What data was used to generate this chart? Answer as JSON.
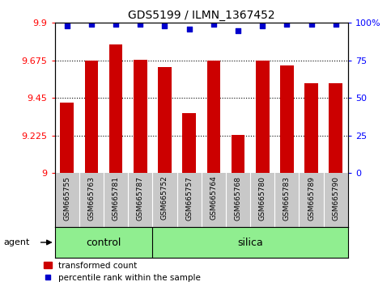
{
  "title": "GDS5199 / ILMN_1367452",
  "samples": [
    "GSM665755",
    "GSM665763",
    "GSM665781",
    "GSM665787",
    "GSM665752",
    "GSM665757",
    "GSM665764",
    "GSM665768",
    "GSM665780",
    "GSM665783",
    "GSM665789",
    "GSM665790"
  ],
  "bar_values": [
    9.42,
    9.675,
    9.77,
    9.68,
    9.635,
    9.36,
    9.675,
    9.23,
    9.675,
    9.645,
    9.54,
    9.54
  ],
  "percentile_values": [
    98,
    99,
    99,
    99,
    98,
    96,
    99,
    95,
    98,
    99,
    99,
    99
  ],
  "ylim_left": [
    9.0,
    9.9
  ],
  "yticks_left": [
    9.0,
    9.225,
    9.45,
    9.675,
    9.9
  ],
  "ytick_labels_left": [
    "9",
    "9.225",
    "9.45",
    "9.675",
    "9.9"
  ],
  "ylim_right": [
    0,
    100
  ],
  "yticks_right": [
    0,
    25,
    50,
    75,
    100
  ],
  "ytick_labels_right": [
    "0",
    "25",
    "50",
    "75",
    "100%"
  ],
  "bar_color": "#cc0000",
  "dot_color": "#0000cc",
  "bar_width": 0.55,
  "n_control": 4,
  "n_silica": 8,
  "group_label_control": "control",
  "group_label_silica": "silica",
  "agent_label": "agent",
  "legend_bar_label": "transformed count",
  "legend_dot_label": "percentile rank within the sample",
  "tick_area_color": "#c8c8c8",
  "group_area_color": "#90ee90",
  "fig_bg": "#ffffff"
}
